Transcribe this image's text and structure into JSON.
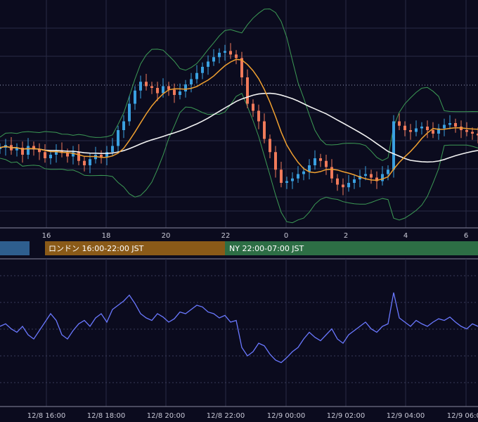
{
  "colors": {
    "background": "#0b0b1e",
    "grid": "#2a2b45",
    "grid_dotted": "#3a3b5a",
    "candle_up": "#3aa0e0",
    "candle_down": "#f07a5a",
    "sma_orange": "#f0a030",
    "sma_white": "#f2f2f2",
    "bollinger": "#3c9a55",
    "oscillator": "#6a78ff",
    "session_tokyo": "#2e5e8e",
    "session_london": "#8a5a18",
    "session_ny": "#2d6e45"
  },
  "sessions": {
    "tokyo": {
      "label": ""
    },
    "london": {
      "label": "ロンドン 16:00-22:00 JST"
    },
    "ny": {
      "label": "NY 22:00-07:00 JST"
    }
  },
  "chart_data": [
    {
      "type": "candlestick",
      "title": "",
      "x_tick_labels": [
        "16",
        "18",
        "20",
        "22",
        "0",
        "2",
        "4",
        "6"
      ],
      "grid": true,
      "price_path": [
        0.6,
        0.63,
        0.57,
        0.6,
        0.52,
        0.62,
        0.58,
        0.55,
        0.48,
        0.52,
        0.57,
        0.54,
        0.5,
        0.55,
        0.45,
        0.4,
        0.47,
        0.52,
        0.49,
        0.55,
        0.62,
        0.8,
        0.9,
        1.1,
        1.25,
        1.35,
        1.3,
        1.28,
        1.22,
        1.3,
        1.26,
        1.2,
        1.24,
        1.32,
        1.38,
        1.45,
        1.52,
        1.58,
        1.63,
        1.68,
        1.7,
        1.66,
        1.62,
        1.4,
        1.1,
        1.02,
        0.9,
        0.7,
        0.55,
        0.35,
        0.2,
        0.22,
        0.25,
        0.3,
        0.33,
        0.4,
        0.48,
        0.45,
        0.38,
        0.25,
        0.18,
        0.15,
        0.2,
        0.24,
        0.28,
        0.3,
        0.26,
        0.22,
        0.3,
        0.35,
        0.9,
        0.85,
        0.8,
        0.78,
        0.82,
        0.84,
        0.8,
        0.76,
        0.82,
        0.86,
        0.88,
        0.84,
        0.8,
        0.78,
        0.76,
        0.74
      ]
    },
    {
      "type": "line",
      "title": "",
      "x_tick_labels": [
        "12/8 16:00",
        "12/8 18:00",
        "12/8 20:00",
        "12/8 22:00",
        "12/9 00:00",
        "12/9 02:00",
        "12/9 04:00",
        "12/9 06:00"
      ],
      "grid": true,
      "series": [
        {
          "values": [
            0.55,
            0.58,
            0.52,
            0.48,
            0.55,
            0.45,
            0.4,
            0.5,
            0.6,
            0.7,
            0.62,
            0.45,
            0.4,
            0.5,
            0.58,
            0.62,
            0.55,
            0.65,
            0.7,
            0.6,
            0.75,
            0.8,
            0.85,
            0.92,
            0.82,
            0.7,
            0.65,
            0.62,
            0.7,
            0.66,
            0.6,
            0.64,
            0.72,
            0.7,
            0.75,
            0.8,
            0.78,
            0.72,
            0.7,
            0.65,
            0.68,
            0.6,
            0.62,
            0.3,
            0.2,
            0.25,
            0.35,
            0.32,
            0.22,
            0.15,
            0.12,
            0.18,
            0.25,
            0.3,
            0.4,
            0.48,
            0.42,
            0.38,
            0.45,
            0.52,
            0.4,
            0.35,
            0.45,
            0.5,
            0.55,
            0.6,
            0.52,
            0.48,
            0.55,
            0.58,
            0.95,
            0.65,
            0.6,
            0.55,
            0.62,
            0.58,
            0.55,
            0.6,
            0.64,
            0.62,
            0.66,
            0.6,
            0.55,
            0.52,
            0.58,
            0.55
          ]
        }
      ]
    }
  ]
}
